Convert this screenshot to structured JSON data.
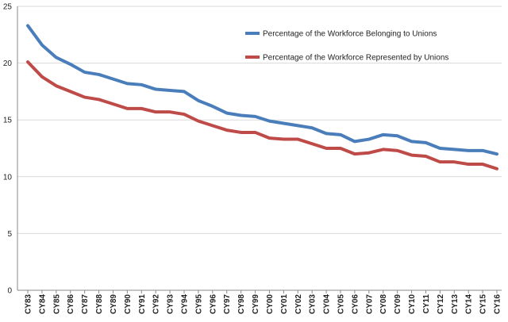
{
  "chart_data": {
    "type": "line",
    "title": "",
    "xlabel": "",
    "ylabel": "",
    "ylim": [
      0,
      25
    ],
    "yticks": [
      0,
      5,
      10,
      15,
      20,
      25
    ],
    "grid": true,
    "legend_position": "top-right",
    "categories": [
      "CY83",
      "CY84",
      "CY85",
      "CY86",
      "CY87",
      "CY88",
      "CY89",
      "CY90",
      "CY91",
      "CY92",
      "CY93",
      "CY94",
      "CY95",
      "CY96",
      "CY97",
      "CY98",
      "CY99",
      "CY00",
      "CY01",
      "CY02",
      "CY03",
      "CY04",
      "CY05",
      "CY06",
      "CY07",
      "CY08",
      "CY09",
      "CY10",
      "CY11",
      "CY12",
      "CY13",
      "CY14",
      "CY15",
      "CY16"
    ],
    "series": [
      {
        "name": "Percentage of the Workforce Belonging to Unions",
        "color": "#4a7ebb",
        "values": [
          23.3,
          21.6,
          20.5,
          19.9,
          19.2,
          19.0,
          18.6,
          18.2,
          18.1,
          17.7,
          17.6,
          17.5,
          16.7,
          16.2,
          15.6,
          15.4,
          15.3,
          14.9,
          14.7,
          14.5,
          14.3,
          13.8,
          13.7,
          13.1,
          13.3,
          13.7,
          13.6,
          13.1,
          13.0,
          12.5,
          12.4,
          12.3,
          12.3,
          12.0
        ]
      },
      {
        "name": "Percentage of the Workforce Represented by Unions",
        "color": "#be4b48",
        "values": [
          20.1,
          18.8,
          18.0,
          17.5,
          17.0,
          16.8,
          16.4,
          16.0,
          16.0,
          15.7,
          15.7,
          15.5,
          14.9,
          14.5,
          14.1,
          13.9,
          13.9,
          13.4,
          13.3,
          13.3,
          12.9,
          12.5,
          12.5,
          12.0,
          12.1,
          12.4,
          12.3,
          11.9,
          11.8,
          11.3,
          11.3,
          11.1,
          11.1,
          10.7
        ]
      }
    ]
  }
}
